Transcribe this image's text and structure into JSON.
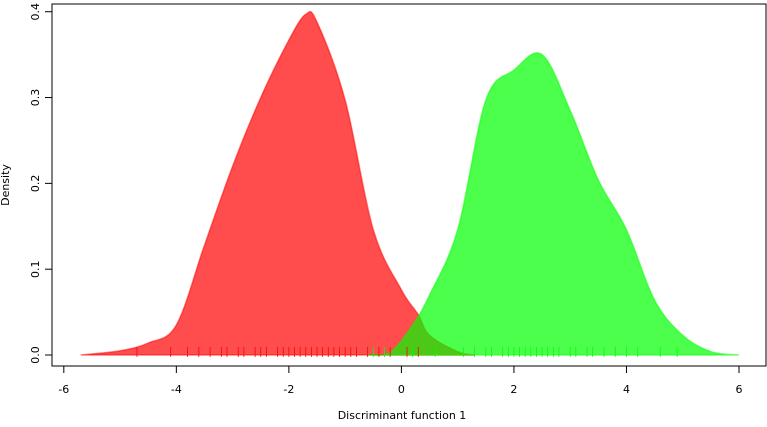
{
  "chart_data": {
    "type": "density",
    "xlabel": "Discriminant function 1",
    "ylabel": "Density",
    "xlim": [
      -6.21,
      6.48
    ],
    "ylim": [
      -0.0128,
      0.409
    ],
    "xticks": [
      -6,
      -4,
      -2,
      0,
      2,
      4,
      6
    ],
    "yticks": [
      {
        "value": 0,
        "label": "0.0"
      },
      0.1,
      0.2,
      0.3,
      0.4
    ],
    "series": [
      {
        "color": "#ff0000",
        "x": [
          -5.7,
          -5.0,
          -4.5,
          -4.0,
          -3.5,
          -3.0,
          -2.5,
          -2.0,
          -1.7,
          -1.5,
          -1.0,
          -0.5,
          0.0,
          0.3,
          0.5,
          1.0,
          1.3
        ],
        "values": [
          0.0,
          0.005,
          0.014,
          0.035,
          0.128,
          0.22,
          0.3,
          0.367,
          0.397,
          0.388,
          0.297,
          0.146,
          0.076,
          0.047,
          0.023,
          0.004,
          0.0
        ],
        "rug": [
          -4.7,
          -4.1,
          -3.8,
          -3.6,
          -3.4,
          -3.2,
          -3.1,
          -2.9,
          -2.8,
          -2.6,
          -2.5,
          -2.4,
          -2.2,
          -2.1,
          -2.0,
          -1.9,
          -1.8,
          -1.7,
          -1.6,
          -1.5,
          -1.4,
          -1.3,
          -1.2,
          -1.1,
          -1.0,
          -0.9,
          -0.8,
          -0.6,
          -0.4,
          -0.2,
          0.1,
          0.3
        ]
      },
      {
        "color": "#00ff00",
        "x": [
          -0.6,
          -0.2,
          0.2,
          0.5,
          1.0,
          1.5,
          2.0,
          2.5,
          3.0,
          3.5,
          4.0,
          4.5,
          5.0,
          5.5,
          6.0
        ],
        "values": [
          0.0,
          0.003,
          0.035,
          0.07,
          0.146,
          0.297,
          0.332,
          0.35,
          0.285,
          0.204,
          0.146,
          0.064,
          0.023,
          0.004,
          0.0
        ],
        "rug": [
          -0.5,
          -0.3,
          0.2,
          0.6,
          1.1,
          1.3,
          1.5,
          1.6,
          1.8,
          1.9,
          2.0,
          2.1,
          2.2,
          2.3,
          2.4,
          2.5,
          2.6,
          2.7,
          2.8,
          3.0,
          3.1,
          3.3,
          3.4,
          3.6,
          3.8,
          4.0,
          4.2,
          4.6,
          4.9
        ]
      }
    ]
  }
}
